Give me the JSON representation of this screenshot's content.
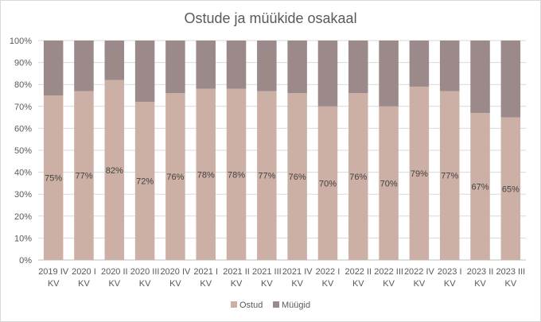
{
  "chart_data": {
    "type": "bar",
    "stacked": true,
    "percent": true,
    "title": "Ostude ja müükide osakaal",
    "categories": [
      [
        "2019 IV",
        "KV"
      ],
      [
        "2020 I",
        "KV"
      ],
      [
        "2020 II",
        "KV"
      ],
      [
        "2020 III",
        "KV"
      ],
      [
        "2020 IV",
        "KV"
      ],
      [
        "2021 I",
        "KV"
      ],
      [
        "2021 II",
        "KV"
      ],
      [
        "2021 III",
        "KV"
      ],
      [
        "2021 IV",
        "KV"
      ],
      [
        "2022 I",
        "KV"
      ],
      [
        "2022 II",
        "KV"
      ],
      [
        "2022 III",
        "KV"
      ],
      [
        "2022 IV",
        "KV"
      ],
      [
        "2023 I",
        "KV"
      ],
      [
        "2023 II",
        "KV"
      ],
      [
        "2023 III",
        "KV"
      ]
    ],
    "series": [
      {
        "name": "Ostud",
        "color": "#cdb0a5",
        "values": [
          75,
          77,
          82,
          72,
          76,
          78,
          78,
          77,
          76,
          70,
          76,
          70,
          79,
          77,
          67,
          65
        ],
        "labels": [
          "75%",
          "77%",
          "82%",
          "72%",
          "76%",
          "78%",
          "78%",
          "77%",
          "76%",
          "70%",
          "76%",
          "70%",
          "79%",
          "77%",
          "67%",
          "65%"
        ]
      },
      {
        "name": "Müügid",
        "color": "#9c8a8a",
        "values": [
          25,
          23,
          18,
          28,
          24,
          22,
          22,
          23,
          24,
          30,
          24,
          30,
          21,
          23,
          33,
          35
        ]
      }
    ],
    "ylim": [
      0,
      100
    ],
    "yticks": [
      "0%",
      "10%",
      "20%",
      "30%",
      "40%",
      "50%",
      "60%",
      "70%",
      "80%",
      "90%",
      "100%"
    ],
    "grid": true,
    "legend": "bottom"
  }
}
